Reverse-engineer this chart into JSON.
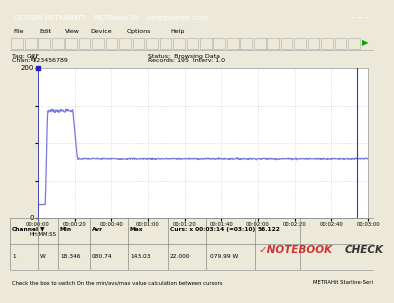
{
  "title": "GOSSEN METRAWATT    METRAwin 10    Unregistered copy",
  "tag": "Tag: OFF",
  "chan": "Chan: 123456789",
  "status": "Status:  Browsing Data",
  "records": "Records: 195  Interv: 1.0",
  "y_max": 200,
  "y_min": 0,
  "y_unit": "W",
  "total_seconds": 180,
  "peak_value": 143,
  "steady_value": 79,
  "idle_value": 18,
  "peak_start_s": 4,
  "peak_end_s": 19,
  "line_color": "#7777dd",
  "bg_color": "#ece9d8",
  "plot_bg": "#ffffff",
  "grid_color": "#c8c8c8",
  "toolbar_bg": "#ece9d8",
  "titlebar_bg": "#0a246a",
  "channel": "1",
  "unit": "W",
  "min_val": "18.346",
  "avg_val": "080.74",
  "max_val": "143.03",
  "cursor_time": "00:03:14 (=03:10)",
  "cursor_val1": "22.000",
  "cursor_val2": "079.99",
  "cursor_unit": "W",
  "cursor_val3": "56.122",
  "notebookcheck_color": "#cc3333",
  "x_tick_labels": [
    "00:00:00",
    "00:00:20",
    "00:00:40",
    "00:01:00",
    "00:01:20",
    "00:01:40",
    "00:02:00",
    "00:02:20",
    "00:02:40",
    "00:03:00"
  ],
  "x_tick_seconds": [
    0,
    20,
    40,
    60,
    80,
    100,
    120,
    140,
    160,
    180
  ],
  "xlabel_left": "HH:MM:SS",
  "footer_left": "Check the box to switch On the min/avs/max value calculation between cursors",
  "footer_right": "METRAHit Starline-Seri",
  "menu_items": [
    "File",
    "Edit",
    "View",
    "Device",
    "Options",
    "Help"
  ]
}
